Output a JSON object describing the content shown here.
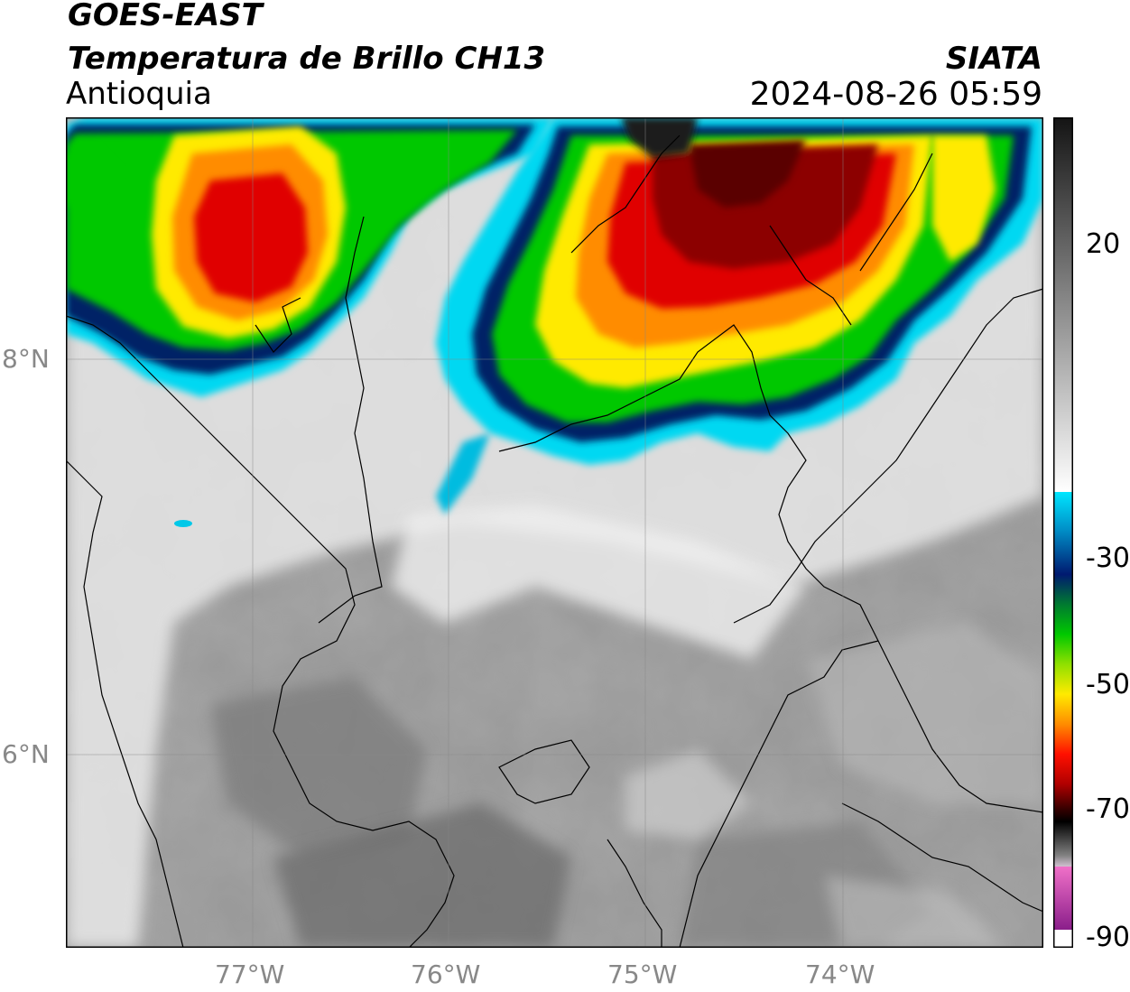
{
  "header": {
    "title_line1": "GOES-EAST",
    "title_line2": "Temperatura de Brillo CH13",
    "region": "Antioquia",
    "org": "SIATA",
    "datetime": "2024-08-26 05:59"
  },
  "map": {
    "lon_range": [
      -77.95,
      -73.0
    ],
    "lat_range": [
      5.0,
      9.2
    ],
    "lon_ticks": [
      {
        "value": -77,
        "label": "77°W"
      },
      {
        "value": -76,
        "label": "76°W"
      },
      {
        "value": -75,
        "label": "75°W"
      },
      {
        "value": -74,
        "label": "74°W"
      }
    ],
    "lat_ticks": [
      {
        "value": 8,
        "label": "8°N"
      },
      {
        "value": 6,
        "label": "6°N"
      }
    ],
    "grid": true
  },
  "colorbar": {
    "range": [
      -90,
      30
    ],
    "ticks": [
      {
        "value": 20,
        "label": "20"
      },
      {
        "value": -30,
        "label": "-30"
      },
      {
        "value": -50,
        "label": "-50"
      },
      {
        "value": -70,
        "label": "-70"
      },
      {
        "value": -90,
        "label": "-90"
      }
    ]
  },
  "colors": {
    "gray_light": "#e6e6e6",
    "gray_dark": "#6f6f6f",
    "cyan": "#00d8f2",
    "navy": "#002266",
    "green": "#00c800",
    "yellow": "#ffea00",
    "orange": "#ff8c00",
    "red": "#e00000",
    "darkred": "#5a0000",
    "black": "#111111",
    "magenta": "#b0309a"
  }
}
